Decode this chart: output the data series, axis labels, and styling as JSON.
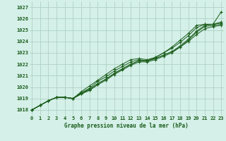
{
  "title": "Graphe pression niveau de la mer (hPa)",
  "background_color": "#d4f0e8",
  "grid_color": "#aaccbe",
  "line_color": "#1a5c1a",
  "x_min": 0,
  "x_max": 23,
  "y_min": 1017.5,
  "y_max": 1027.5,
  "y_ticks": [
    1018,
    1019,
    1020,
    1021,
    1022,
    1023,
    1024,
    1025,
    1026,
    1027
  ],
  "x_ticks": [
    0,
    1,
    2,
    3,
    4,
    5,
    6,
    7,
    8,
    9,
    10,
    11,
    12,
    13,
    14,
    15,
    16,
    17,
    18,
    19,
    20,
    21,
    22,
    23
  ],
  "series": [
    [
      1018.0,
      1018.4,
      1018.8,
      1019.1,
      1019.1,
      1019.0,
      1019.5,
      1019.8,
      1020.3,
      1020.7,
      1021.2,
      1021.6,
      1022.0,
      1022.3,
      1022.3,
      1022.5,
      1022.8,
      1023.1,
      1023.5,
      1024.0,
      1024.6,
      1025.1,
      1025.3,
      1025.4
    ],
    [
      1018.0,
      1018.4,
      1018.8,
      1019.1,
      1019.1,
      1019.0,
      1019.4,
      1019.7,
      1020.2,
      1020.6,
      1021.1,
      1021.5,
      1021.9,
      1022.2,
      1022.2,
      1022.4,
      1022.7,
      1023.0,
      1023.5,
      1024.1,
      1024.8,
      1025.3,
      1025.4,
      1025.5
    ],
    [
      1018.0,
      1018.4,
      1018.8,
      1019.1,
      1019.1,
      1019.0,
      1019.4,
      1019.8,
      1020.3,
      1020.7,
      1021.2,
      1021.6,
      1022.0,
      1022.3,
      1022.3,
      1022.5,
      1022.8,
      1023.1,
      1023.6,
      1024.2,
      1024.9,
      1025.4,
      1025.5,
      1025.7
    ],
    [
      1018.0,
      1018.4,
      1018.8,
      1019.1,
      1019.1,
      1019.0,
      1019.5,
      1019.9,
      1020.5,
      1020.9,
      1021.4,
      1021.8,
      1022.2,
      1022.4,
      1022.3,
      1022.6,
      1023.0,
      1023.4,
      1023.9,
      1024.5,
      1025.2,
      1025.5,
      1025.5,
      1025.6
    ],
    [
      1018.0,
      1018.4,
      1018.8,
      1019.1,
      1019.1,
      1019.0,
      1019.6,
      1020.1,
      1020.6,
      1021.1,
      1021.6,
      1022.0,
      1022.4,
      1022.5,
      1022.4,
      1022.6,
      1023.0,
      1023.5,
      1024.1,
      1024.7,
      1025.4,
      1025.5,
      1025.5,
      1026.6
    ]
  ]
}
